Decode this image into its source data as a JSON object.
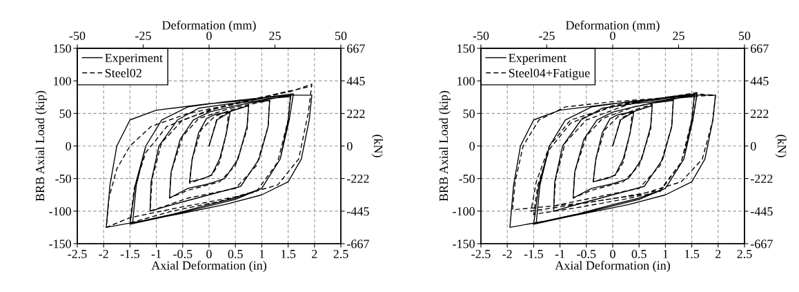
{
  "chart_data": [
    {
      "type": "line",
      "xlabel": "Axial Deformation (in)",
      "ylabel": "BRB Axial Load (kip)",
      "y2label": "(kN)",
      "x2label": "Deformation (mm)",
      "xlim": [
        -2.5,
        2.5
      ],
      "xticks": [
        -2.5,
        -2,
        -1.5,
        -1,
        -0.5,
        0,
        0.5,
        1,
        1.5,
        2,
        2.5
      ],
      "ylim": [
        -150,
        150
      ],
      "yticks": [
        -150,
        -100,
        -50,
        0,
        50,
        100,
        150
      ],
      "y2lim": [
        -667,
        667
      ],
      "y2ticks": [
        -667,
        -445,
        -222,
        0,
        222,
        445,
        667
      ],
      "x2lim": [
        -50,
        50
      ],
      "x2ticks": [
        -50,
        -25,
        0,
        25,
        50
      ],
      "grid": true,
      "legend": "top left",
      "series": [
        {
          "name": "Experiment",
          "color": "#000000",
          "line_style": "solid",
          "x": [
            0,
            0.15,
            0.35,
            0.4,
            0.33,
            0.2,
            0.05,
            -0.1,
            -0.37,
            -0.32,
            -0.2,
            -0.05,
            0.1,
            0.4,
            0.75,
            0.72,
            0.55,
            0.3,
            0,
            -0.4,
            -0.75,
            -0.72,
            -0.55,
            -0.3,
            0,
            0.4,
            0.75,
            1.15,
            1.12,
            0.95,
            0.6,
            0,
            -0.6,
            -1.12,
            -1.1,
            -0.95,
            -0.6,
            -0.2,
            0.4,
            1.0,
            1.15,
            1.55,
            1.5,
            1.35,
            1.0,
            0.5,
            0,
            -0.7,
            -1.45,
            -1.38,
            -1.2,
            -0.9,
            -0.4,
            0.3,
            1.0,
            1.6,
            1.52,
            1.35,
            1.0,
            0.5,
            -0.7,
            -1.5,
            -1.4,
            -1.2,
            -0.9,
            -0.4,
            0.3,
            1.0,
            1.6,
            1.95,
            1.9,
            1.75,
            1.5,
            1.0,
            0.3,
            -0.8,
            -1.95,
            -1.88,
            -1.75,
            -1.5,
            -1.0,
            0,
            1.0,
            1.55
          ],
          "values": [
            0,
            40,
            50,
            52,
            20,
            -20,
            -44,
            -50,
            -55,
            -20,
            20,
            42,
            48,
            53,
            62,
            30,
            -20,
            -50,
            -58,
            -65,
            -80,
            -40,
            10,
            40,
            52,
            60,
            66,
            70,
            30,
            -20,
            -62,
            -75,
            -88,
            -100,
            -55,
            0,
            40,
            58,
            65,
            70,
            72,
            78,
            40,
            -20,
            -65,
            -80,
            -90,
            -105,
            -118,
            -60,
            0,
            40,
            60,
            68,
            74,
            80,
            40,
            -20,
            -65,
            -82,
            -106,
            -120,
            -60,
            0,
            40,
            60,
            68,
            74,
            78,
            78,
            40,
            -20,
            -55,
            -75,
            -90,
            -108,
            -125,
            -60,
            0,
            40,
            55,
            65,
            72,
            76
          ]
        },
        {
          "name": "Steel02",
          "color": "#000000",
          "line_style": "dashed",
          "x": [
            0,
            0.15,
            0.37,
            0.33,
            0.2,
            0.05,
            -0.37,
            -0.32,
            -0.15,
            0.1,
            0.4,
            0.75,
            0.72,
            0.5,
            0.2,
            -0.4,
            -0.75,
            -0.72,
            -0.5,
            -0.2,
            0.4,
            1.15,
            1.12,
            0.9,
            0.5,
            -0.4,
            -1.12,
            -1.08,
            -0.9,
            -0.5,
            0.3,
            1.0,
            1.55,
            1.5,
            1.3,
            0.9,
            0.2,
            -0.7,
            -1.5,
            -1.42,
            -1.2,
            -0.8,
            0,
            0.8,
            1.6,
            1.95,
            1.88,
            1.7,
            1.3,
            0.5,
            -0.6,
            -1.5,
            -1.95,
            -1.9,
            -1.75,
            -1.5,
            -1.1,
            -0.4,
            0.5,
            1.3,
            1.95
          ],
          "values": [
            0,
            42,
            52,
            20,
            -25,
            -45,
            -57,
            -20,
            25,
            45,
            55,
            62,
            25,
            -30,
            -55,
            -68,
            -80,
            -40,
            15,
            42,
            58,
            70,
            30,
            -30,
            -65,
            -80,
            -100,
            -50,
            5,
            40,
            62,
            75,
            85,
            40,
            -25,
            -70,
            -85,
            -100,
            -118,
            -65,
            -10,
            30,
            55,
            70,
            85,
            95,
            50,
            -20,
            -60,
            -78,
            -95,
            -110,
            -125,
            -80,
            -35,
            0,
            30,
            50,
            65,
            80,
            92
          ]
        }
      ]
    },
    {
      "type": "line",
      "xlabel": "Axial Deformation (in)",
      "ylabel": "BRB Axial Load (kip)",
      "y2label": "(kN)",
      "x2label": "Deformation (mm)",
      "xlim": [
        -2.5,
        2.5
      ],
      "xticks": [
        -2.5,
        -2,
        -1.5,
        -1,
        -0.5,
        0,
        0.5,
        1,
        1.5,
        2,
        2.5
      ],
      "ylim": [
        -150,
        150
      ],
      "yticks": [
        -150,
        -100,
        -50,
        0,
        50,
        100,
        150
      ],
      "y2lim": [
        -667,
        667
      ],
      "y2ticks": [
        -667,
        -445,
        -222,
        0,
        222,
        445,
        667
      ],
      "x2lim": [
        -50,
        50
      ],
      "x2ticks": [
        -50,
        -25,
        0,
        25,
        50
      ],
      "grid": true,
      "legend": "top left",
      "series": [
        {
          "name": "Experiment",
          "color": "#000000",
          "line_style": "solid",
          "x": [
            0,
            0.15,
            0.35,
            0.4,
            0.33,
            0.2,
            0.05,
            -0.1,
            -0.37,
            -0.32,
            -0.2,
            -0.05,
            0.1,
            0.4,
            0.75,
            0.72,
            0.55,
            0.3,
            0,
            -0.4,
            -0.75,
            -0.72,
            -0.55,
            -0.3,
            0,
            0.4,
            0.75,
            1.15,
            1.12,
            0.95,
            0.6,
            0,
            -0.6,
            -1.12,
            -1.1,
            -0.95,
            -0.6,
            -0.2,
            0.4,
            1.0,
            1.15,
            1.55,
            1.5,
            1.35,
            1.0,
            0.5,
            0,
            -0.7,
            -1.45,
            -1.38,
            -1.2,
            -0.9,
            -0.4,
            0.3,
            1.0,
            1.6,
            1.52,
            1.35,
            1.0,
            0.5,
            -0.7,
            -1.5,
            -1.4,
            -1.2,
            -0.9,
            -0.4,
            0.3,
            1.0,
            1.6,
            1.95,
            1.9,
            1.75,
            1.5,
            1.0,
            0.3,
            -0.8,
            -1.95,
            -1.88,
            -1.75,
            -1.5,
            -1.0,
            0,
            1.0,
            1.55
          ],
          "values": [
            0,
            40,
            50,
            52,
            20,
            -20,
            -44,
            -50,
            -55,
            -20,
            20,
            42,
            48,
            53,
            62,
            30,
            -20,
            -50,
            -58,
            -65,
            -80,
            -40,
            10,
            40,
            52,
            60,
            66,
            70,
            30,
            -20,
            -62,
            -75,
            -88,
            -100,
            -55,
            0,
            40,
            58,
            65,
            70,
            72,
            78,
            40,
            -20,
            -65,
            -80,
            -90,
            -105,
            -118,
            -60,
            0,
            40,
            60,
            68,
            74,
            80,
            40,
            -20,
            -65,
            -82,
            -106,
            -120,
            -60,
            0,
            40,
            60,
            68,
            74,
            78,
            78,
            40,
            -20,
            -55,
            -75,
            -90,
            -108,
            -125,
            -60,
            0,
            40,
            55,
            65,
            72,
            76
          ]
        },
        {
          "name": "Steel04+Fatigue",
          "color": "#000000",
          "line_style": "dashed",
          "x": [
            0,
            0.15,
            0.37,
            0.33,
            0.2,
            0.05,
            -0.37,
            -0.32,
            -0.15,
            0.1,
            0.4,
            0.75,
            0.72,
            0.5,
            0.2,
            -0.4,
            -0.75,
            -0.72,
            -0.5,
            -0.2,
            0.4,
            1.15,
            1.12,
            0.9,
            0.5,
            -0.4,
            -1.12,
            -1.08,
            -0.9,
            -0.5,
            0.3,
            1.0,
            1.55,
            1.5,
            1.3,
            0.9,
            0.2,
            -0.7,
            -1.5,
            -1.42,
            -1.2,
            -0.8,
            0,
            0.8,
            1.6,
            1.52,
            1.3,
            0.9,
            0.2,
            -0.7,
            -1.55,
            -1.45,
            -1.2,
            -0.8,
            0,
            0.8,
            1.6,
            1.95,
            1.9,
            1.7,
            1.3,
            0.5,
            -0.6,
            -1.9,
            -1.85,
            -1.7,
            -1.4,
            -0.9,
            0,
            1.0,
            1.95
          ],
          "values": [
            0,
            42,
            52,
            20,
            -25,
            -45,
            -55,
            -20,
            25,
            45,
            55,
            64,
            25,
            -30,
            -55,
            -68,
            -80,
            -40,
            15,
            42,
            60,
            72,
            30,
            -30,
            -65,
            -80,
            -92,
            -50,
            5,
            40,
            64,
            75,
            80,
            40,
            -25,
            -70,
            -82,
            -95,
            -105,
            -60,
            -5,
            35,
            62,
            72,
            82,
            40,
            -25,
            -68,
            -78,
            -90,
            -100,
            -55,
            0,
            40,
            60,
            72,
            80,
            78,
            40,
            -20,
            -55,
            -75,
            -88,
            -98,
            -55,
            0,
            40,
            60,
            68,
            74,
            78
          ]
        }
      ]
    }
  ]
}
